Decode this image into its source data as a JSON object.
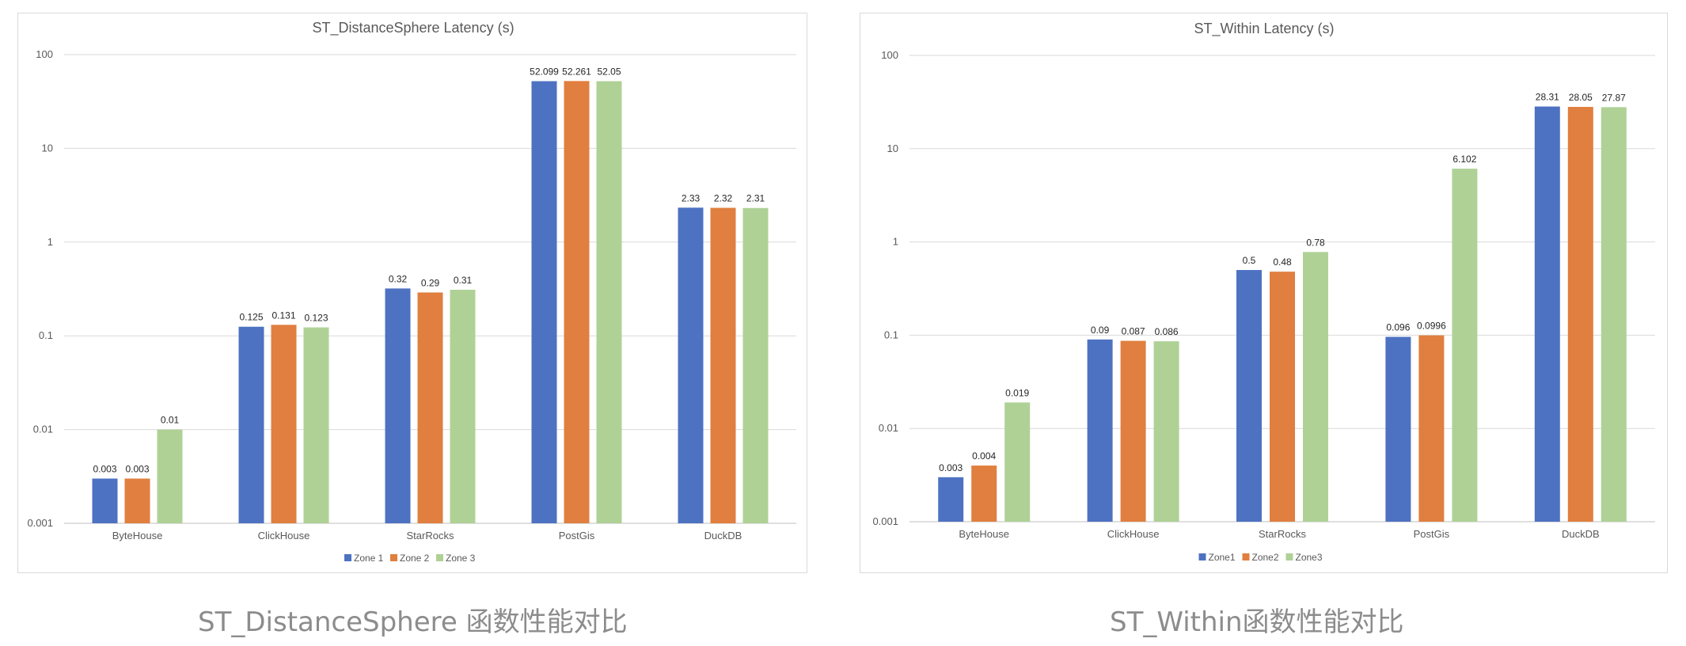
{
  "chart_data": [
    {
      "type": "bar",
      "title": "ST_DistanceSphere Latency (s)",
      "yscale": "log",
      "ylim": [
        0.001,
        100
      ],
      "yticks": [
        "100",
        "10",
        "1",
        "0.1",
        "0.01",
        "0.001"
      ],
      "grid": true,
      "legend": "bottom",
      "categories": [
        "ByteHouse",
        "ClickHouse",
        "StarRocks",
        "PostGis",
        "DuckDB"
      ],
      "series": [
        {
          "name": "Zone 1",
          "color": "#4e72c2",
          "values": [
            0.003,
            0.125,
            0.32,
            52.099,
            2.33
          ],
          "labels": [
            "0.003",
            "0.125",
            "0.32",
            "52.099",
            "2.33"
          ]
        },
        {
          "name": "Zone 2",
          "color": "#e07f3f",
          "values": [
            0.003,
            0.131,
            0.29,
            52.261,
            2.32
          ],
          "labels": [
            "0.003",
            "0.131",
            "0.29",
            "52.261",
            "2.32"
          ]
        },
        {
          "name": "Zone 3",
          "color": "#afd196",
          "values": [
            0.01,
            0.123,
            0.31,
            52.05,
            2.31
          ],
          "labels": [
            "0.01",
            "0.123",
            "0.31",
            "52.05",
            "2.31"
          ]
        }
      ]
    },
    {
      "type": "bar",
      "title": "ST_Within Latency (s)",
      "yscale": "log",
      "ylim": [
        0.001,
        100
      ],
      "yticks": [
        "100",
        "10",
        "1",
        "0.1",
        "0.01",
        "0.001"
      ],
      "grid": true,
      "legend": "bottom",
      "categories": [
        "ByteHouse",
        "ClickHouse",
        "StarRocks",
        "PostGis",
        "DuckDB"
      ],
      "series": [
        {
          "name": "Zone1",
          "color": "#4e72c2",
          "values": [
            0.003,
            0.09,
            0.5,
            0.096,
            28.31
          ],
          "labels": [
            "0.003",
            "0.09",
            "0.5",
            "0.096",
            "28.31"
          ]
        },
        {
          "name": "Zone2",
          "color": "#e07f3f",
          "values": [
            0.004,
            0.087,
            0.48,
            0.0996,
            28.05
          ],
          "labels": [
            "0.004",
            "0.087",
            "0.48",
            "0.0996",
            "28.05"
          ]
        },
        {
          "name": "Zone3",
          "color": "#afd196",
          "values": [
            0.019,
            0.086,
            0.78,
            6.102,
            27.87
          ],
          "labels": [
            "0.019",
            "0.086",
            "0.78",
            "6.102",
            "27.87"
          ]
        }
      ]
    }
  ],
  "captions": {
    "left": "ST_DistanceSphere 函数性能对比",
    "right": "ST_Within函数性能对比"
  }
}
